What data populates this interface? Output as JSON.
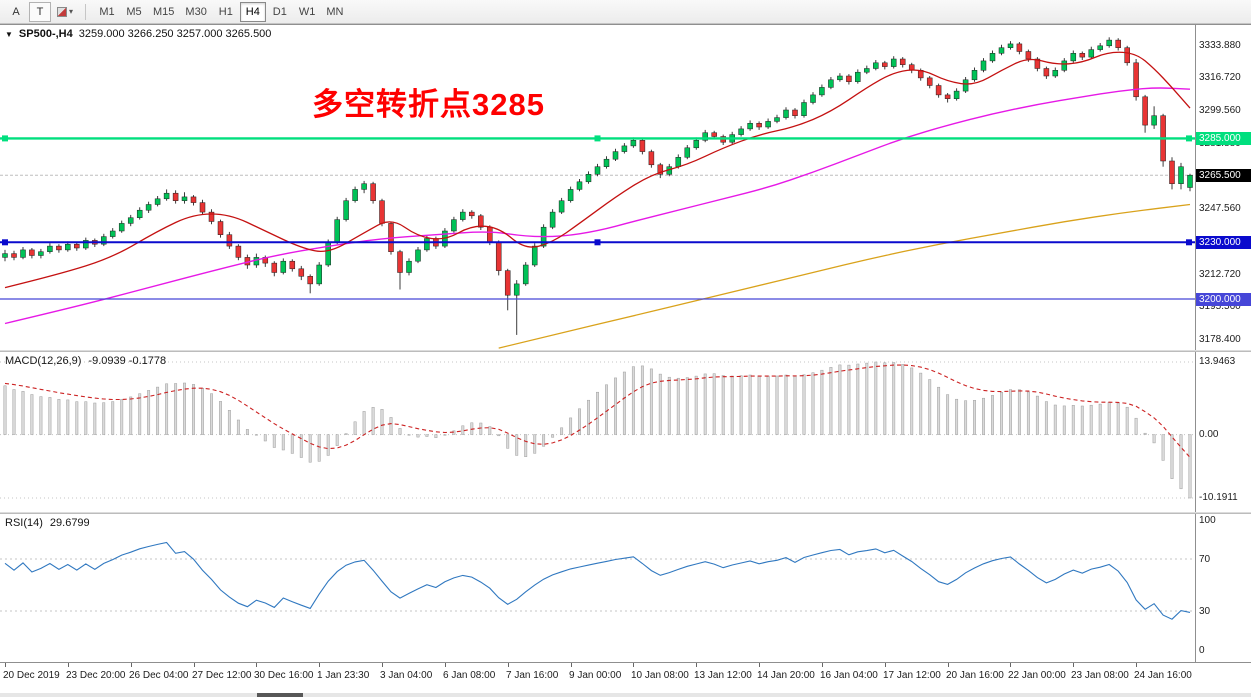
{
  "toolbar": {
    "cursor_label": "A",
    "text_label": "T",
    "dropdown_icon": "▾",
    "timeframes": [
      {
        "label": "M1",
        "active": false
      },
      {
        "label": "M5",
        "active": false
      },
      {
        "label": "M15",
        "active": false
      },
      {
        "label": "M30",
        "active": false
      },
      {
        "label": "H1",
        "active": false
      },
      {
        "label": "H4",
        "active": true
      },
      {
        "label": "D1",
        "active": false
      },
      {
        "label": "W1",
        "active": false
      },
      {
        "label": "MN",
        "active": false
      }
    ]
  },
  "chart": {
    "collapse_icon": "▼",
    "symbol_label": "SP500-,H4",
    "ohlc_text": "3259.000 3266.250 3257.000 3265.500",
    "annotation": {
      "text": "多空转折点3285",
      "color": "#fe0000"
    },
    "y_range": {
      "top": 3345,
      "bottom": 3173
    },
    "price_axis": [
      {
        "text": "3333.880",
        "price": 3333.88
      },
      {
        "text": "3316.720",
        "price": 3316.72
      },
      {
        "text": "3299.560",
        "price": 3299.56
      },
      {
        "text": "3281.880",
        "price": 3281.88
      },
      {
        "text": "3247.560",
        "price": 3247.56
      },
      {
        "text": "3212.720",
        "price": 3212.72
      },
      {
        "text": "3195.560",
        "price": 3195.56
      },
      {
        "text": "3178.400",
        "price": 3178.4
      }
    ],
    "price_tags": [
      {
        "text": "3285.000",
        "price": 3285,
        "bg": "#00df7e"
      },
      {
        "text": "3265.500",
        "price": 3265.5,
        "bg": "#000000"
      },
      {
        "text": "3230.000",
        "price": 3230,
        "bg": "#0a0acd"
      },
      {
        "text": "3200.000",
        "price": 3200,
        "bg": "#4646d8"
      }
    ],
    "hlines": [
      {
        "price": 3265.5,
        "color": "#bdbdbd",
        "width": 1,
        "handles": false,
        "behind": true
      },
      {
        "price": 3285,
        "color": "#00df7e",
        "width": 2.4,
        "handles": true,
        "behind": false
      },
      {
        "price": 3230,
        "color": "#0a0acd",
        "width": 2,
        "handles": true,
        "behind": false
      },
      {
        "price": 3200,
        "color": "#4646d8",
        "width": 1.3,
        "handles": false,
        "behind": false
      }
    ]
  },
  "chart_data": {
    "type": "candlestick",
    "symbol": "SP500-",
    "timeframe": "H4",
    "current_ohlc": {
      "open": 3259.0,
      "high": 3266.25,
      "low": 3257.0,
      "close": 3265.5
    },
    "candles": [
      [
        3222,
        3226,
        3220,
        3224
      ],
      [
        3224,
        3225.5,
        3220.5,
        3222
      ],
      [
        3222,
        3227.5,
        3221,
        3226
      ],
      [
        3226,
        3227,
        3221.5,
        3223
      ],
      [
        3223,
        3226.5,
        3221.5,
        3225
      ],
      [
        3225,
        3229.5,
        3224,
        3228
      ],
      [
        3228,
        3229,
        3224.5,
        3226
      ],
      [
        3226,
        3230.5,
        3225,
        3229
      ],
      [
        3229,
        3230,
        3225.5,
        3227
      ],
      [
        3227,
        3232.5,
        3226,
        3231
      ],
      [
        3231,
        3232,
        3227.5,
        3229
      ],
      [
        3229,
        3234.5,
        3228,
        3233
      ],
      [
        3233,
        3237.5,
        3232,
        3236
      ],
      [
        3236,
        3241.5,
        3235,
        3240
      ],
      [
        3240,
        3244.5,
        3238.5,
        3243
      ],
      [
        3243,
        3248.5,
        3242,
        3247
      ],
      [
        3247,
        3251.5,
        3245.5,
        3250
      ],
      [
        3250,
        3254.5,
        3249,
        3253
      ],
      [
        3253,
        3258,
        3252,
        3256
      ],
      [
        3256,
        3257.5,
        3250.5,
        3252
      ],
      [
        3252,
        3256.5,
        3250.5,
        3254
      ],
      [
        3254,
        3255,
        3249.5,
        3251
      ],
      [
        3251,
        3252.5,
        3244.5,
        3246
      ],
      [
        3246,
        3247.5,
        3239.5,
        3241
      ],
      [
        3241,
        3242,
        3232.5,
        3234
      ],
      [
        3234,
        3235.5,
        3226.5,
        3228
      ],
      [
        3228,
        3229,
        3220.5,
        3222
      ],
      [
        3222,
        3223.5,
        3216,
        3218
      ],
      [
        3218,
        3224,
        3216.5,
        3222
      ],
      [
        3222,
        3223,
        3217,
        3219
      ],
      [
        3219,
        3220,
        3212,
        3214
      ],
      [
        3214,
        3221.5,
        3213,
        3220
      ],
      [
        3220,
        3221,
        3214.5,
        3216
      ],
      [
        3216,
        3217.5,
        3210,
        3212
      ],
      [
        3212,
        3213,
        3203,
        3208
      ],
      [
        3208,
        3219.5,
        3207,
        3218
      ],
      [
        3218,
        3231.5,
        3217,
        3230
      ],
      [
        3230,
        3243.5,
        3229,
        3242
      ],
      [
        3242,
        3253.5,
        3241,
        3252
      ],
      [
        3252,
        3259.5,
        3251,
        3258
      ],
      [
        3258,
        3262.5,
        3256,
        3261
      ],
      [
        3261,
        3262,
        3250.5,
        3252
      ],
      [
        3252,
        3253,
        3238.5,
        3240
      ],
      [
        3240,
        3241,
        3223.5,
        3225
      ],
      [
        3225,
        3226,
        3205,
        3214
      ],
      [
        3214,
        3221.5,
        3212.5,
        3220
      ],
      [
        3220,
        3227.5,
        3219,
        3226
      ],
      [
        3226,
        3233.5,
        3225,
        3232
      ],
      [
        3232,
        3233,
        3226.5,
        3228
      ],
      [
        3228,
        3237.5,
        3227,
        3236
      ],
      [
        3236,
        3243.5,
        3235,
        3242
      ],
      [
        3242,
        3247.5,
        3241,
        3246
      ],
      [
        3246,
        3247,
        3242.5,
        3244
      ],
      [
        3244,
        3245,
        3236.5,
        3238
      ],
      [
        3238,
        3239,
        3228.5,
        3230
      ],
      [
        3230,
        3231,
        3212.5,
        3215
      ],
      [
        3215,
        3216,
        3194,
        3202
      ],
      [
        3202,
        3210,
        3181,
        3208
      ],
      [
        3208,
        3219.5,
        3207,
        3218
      ],
      [
        3218,
        3229.5,
        3217,
        3228
      ],
      [
        3228,
        3239.5,
        3227,
        3238
      ],
      [
        3238,
        3247.5,
        3237,
        3246
      ],
      [
        3246,
        3253.5,
        3245,
        3252
      ],
      [
        3252,
        3259.5,
        3251,
        3258
      ],
      [
        3258,
        3263.5,
        3257,
        3262
      ],
      [
        3262,
        3267.5,
        3261,
        3266
      ],
      [
        3266,
        3271.5,
        3265,
        3270
      ],
      [
        3270,
        3275.5,
        3269,
        3274
      ],
      [
        3274,
        3279.5,
        3273,
        3278
      ],
      [
        3278,
        3282.5,
        3277,
        3281
      ],
      [
        3281,
        3285.5,
        3280,
        3284
      ],
      [
        3284,
        3285,
        3276.5,
        3278
      ],
      [
        3278,
        3279,
        3269.5,
        3271
      ],
      [
        3271,
        3272,
        3264,
        3266
      ],
      [
        3266,
        3271.5,
        3265,
        3270
      ],
      [
        3270,
        3276.5,
        3269,
        3275
      ],
      [
        3275,
        3281.5,
        3274,
        3280
      ],
      [
        3280,
        3285.5,
        3279,
        3284
      ],
      [
        3284,
        3289.5,
        3283,
        3288
      ],
      [
        3288,
        3289,
        3284.5,
        3286
      ],
      [
        3286,
        3287,
        3281.5,
        3283
      ],
      [
        3283,
        3288.5,
        3282,
        3287
      ],
      [
        3287,
        3291.5,
        3286,
        3290
      ],
      [
        3290,
        3294.5,
        3289,
        3293
      ],
      [
        3293,
        3294,
        3289.5,
        3291
      ],
      [
        3291,
        3295.5,
        3290,
        3294
      ],
      [
        3294,
        3297.5,
        3293,
        3296
      ],
      [
        3296,
        3301.5,
        3295,
        3300
      ],
      [
        3300,
        3301,
        3295.5,
        3297
      ],
      [
        3297,
        3305.5,
        3296,
        3304
      ],
      [
        3304,
        3309.5,
        3303,
        3308
      ],
      [
        3308,
        3313.5,
        3307,
        3312
      ],
      [
        3312,
        3317.5,
        3311,
        3316
      ],
      [
        3316,
        3319.5,
        3315,
        3318
      ],
      [
        3318,
        3319,
        3313.5,
        3315
      ],
      [
        3315,
        3321.5,
        3314,
        3320
      ],
      [
        3320,
        3323.5,
        3319,
        3322
      ],
      [
        3322,
        3326.5,
        3321,
        3325
      ],
      [
        3325,
        3326,
        3321.5,
        3323
      ],
      [
        3323,
        3328.5,
        3322,
        3327
      ],
      [
        3327,
        3328,
        3322.5,
        3324
      ],
      [
        3324,
        3325,
        3319.5,
        3321
      ],
      [
        3321,
        3322,
        3315.5,
        3317
      ],
      [
        3317,
        3318,
        3311.5,
        3313
      ],
      [
        3313,
        3314,
        3306.5,
        3308
      ],
      [
        3308,
        3309,
        3304,
        3306
      ],
      [
        3306,
        3311.5,
        3305,
        3310
      ],
      [
        3310,
        3317.5,
        3309,
        3316
      ],
      [
        3316,
        3322.5,
        3315,
        3321
      ],
      [
        3321,
        3327.5,
        3320,
        3326
      ],
      [
        3326,
        3331.5,
        3325,
        3330
      ],
      [
        3330,
        3334.5,
        3329,
        3333
      ],
      [
        3333,
        3336.5,
        3332,
        3335
      ],
      [
        3335,
        3336,
        3329.5,
        3331
      ],
      [
        3331,
        3332,
        3325.5,
        3327
      ],
      [
        3327,
        3328,
        3320.5,
        3322
      ],
      [
        3322,
        3323,
        3316.5,
        3318
      ],
      [
        3318,
        3322.5,
        3317,
        3321
      ],
      [
        3321,
        3327.5,
        3320,
        3326
      ],
      [
        3326,
        3331.5,
        3325,
        3330
      ],
      [
        3330,
        3331,
        3326.5,
        3328
      ],
      [
        3328,
        3333.5,
        3327,
        3332
      ],
      [
        3332,
        3335.5,
        3331,
        3334
      ],
      [
        3334,
        3338.5,
        3333,
        3337
      ],
      [
        3337,
        3338,
        3331.5,
        3333
      ],
      [
        3333,
        3334,
        3323.5,
        3325
      ],
      [
        3325,
        3327,
        3305,
        3307
      ],
      [
        3307,
        3308,
        3288,
        3292
      ],
      [
        3292,
        3302,
        3290,
        3297
      ],
      [
        3297,
        3298,
        3270,
        3273
      ],
      [
        3273,
        3275,
        3258,
        3261
      ],
      [
        3261,
        3272,
        3258,
        3270
      ],
      [
        3259,
        3266.25,
        3257,
        3265.5
      ]
    ],
    "time_labels": [
      {
        "text": "20 Dec 2019",
        "bar": 0
      },
      {
        "text": "23 Dec 20:00",
        "bar": 7
      },
      {
        "text": "26 Dec 04:00",
        "bar": 14
      },
      {
        "text": "27 Dec 12:00",
        "bar": 21
      },
      {
        "text": "30 Dec 16:00",
        "bar": 28
      },
      {
        "text": "1 Jan 23:30",
        "bar": 35
      },
      {
        "text": "3 Jan 04:00",
        "bar": 42
      },
      {
        "text": "6 Jan 08:00",
        "bar": 49
      },
      {
        "text": "7 Jan 16:00",
        "bar": 56
      },
      {
        "text": "9 Jan 00:00",
        "bar": 63
      },
      {
        "text": "10 Jan 08:00",
        "bar": 70
      },
      {
        "text": "13 Jan 12:00",
        "bar": 77
      },
      {
        "text": "14 Jan 20:00",
        "bar": 84
      },
      {
        "text": "16 Jan 04:00",
        "bar": 91
      },
      {
        "text": "17 Jan 12:00",
        "bar": 98
      },
      {
        "text": "20 Jan 16:00",
        "bar": 105
      },
      {
        "text": "22 Jan 00:00",
        "bar": 112
      },
      {
        "text": "23 Jan 08:00",
        "bar": 119
      },
      {
        "text": "24 Jan 16:00",
        "bar": 126
      }
    ],
    "ma_red": [
      [
        0,
        3206
      ],
      [
        6,
        3213
      ],
      [
        12,
        3222
      ],
      [
        17,
        3236
      ],
      [
        21,
        3245
      ],
      [
        25,
        3245
      ],
      [
        29,
        3236
      ],
      [
        33,
        3227
      ],
      [
        36,
        3224
      ],
      [
        40,
        3235
      ],
      [
        43,
        3243
      ],
      [
        46,
        3233
      ],
      [
        49,
        3231
      ],
      [
        52,
        3239
      ],
      [
        55,
        3238
      ],
      [
        58,
        3226
      ],
      [
        61,
        3230
      ],
      [
        64,
        3240
      ],
      [
        68,
        3254
      ],
      [
        72,
        3266
      ],
      [
        76,
        3271
      ],
      [
        80,
        3280
      ],
      [
        84,
        3287
      ],
      [
        88,
        3291
      ],
      [
        92,
        3299
      ],
      [
        96,
        3312
      ],
      [
        99,
        3320
      ],
      [
        102,
        3322
      ],
      [
        105,
        3315
      ],
      [
        108,
        3313
      ],
      [
        111,
        3321
      ],
      [
        114,
        3328
      ],
      [
        117,
        3324
      ],
      [
        120,
        3325
      ],
      [
        123,
        3331
      ],
      [
        126,
        3330
      ],
      [
        128,
        3322
      ],
      [
        130,
        3312
      ],
      [
        132,
        3301
      ]
    ],
    "ma_magenta": [
      [
        0,
        3187
      ],
      [
        8,
        3196
      ],
      [
        16,
        3206
      ],
      [
        24,
        3216
      ],
      [
        30,
        3223
      ],
      [
        36,
        3228
      ],
      [
        42,
        3232
      ],
      [
        48,
        3234
      ],
      [
        54,
        3236
      ],
      [
        58,
        3233
      ],
      [
        62,
        3233
      ],
      [
        66,
        3236
      ],
      [
        70,
        3241
      ],
      [
        75,
        3247
      ],
      [
        80,
        3253
      ],
      [
        85,
        3259
      ],
      [
        90,
        3267
      ],
      [
        95,
        3276
      ],
      [
        100,
        3285
      ],
      [
        105,
        3292
      ],
      [
        110,
        3298
      ],
      [
        115,
        3303
      ],
      [
        120,
        3307
      ],
      [
        124,
        3310
      ],
      [
        128,
        3312
      ],
      [
        132,
        3311
      ]
    ],
    "ma_orange": [
      [
        55,
        3174
      ],
      [
        62,
        3182
      ],
      [
        69,
        3190
      ],
      [
        76,
        3198
      ],
      [
        83,
        3206
      ],
      [
        90,
        3214
      ],
      [
        97,
        3222
      ],
      [
        104,
        3229
      ],
      [
        111,
        3235
      ],
      [
        118,
        3241
      ],
      [
        125,
        3246
      ],
      [
        132,
        3250
      ]
    ],
    "macd": {
      "label": "MACD(12,26,9)",
      "values_text": "-9.0939 -0.1778",
      "params": [
        12,
        26,
        9
      ],
      "axis_labels": [
        "13.9463",
        "0.00",
        "-10.1911"
      ]
    },
    "rsi": {
      "label": "RSI(14)",
      "value_text": "29.6799",
      "period": 14,
      "levels": [
        70,
        30
      ],
      "axis_labels": [
        "100",
        "70",
        "30",
        "0"
      ]
    }
  },
  "colors": {
    "bull": "#00c257",
    "bear": "#e83434",
    "outline": "#1f1f1f",
    "wick": "#3c3c3c",
    "ma_red": "#c41111",
    "ma_magenta": "#e619e6",
    "ma_orange": "#d9a21b",
    "macd_hist_fill": "#dadada",
    "macd_hist_stroke": "#9e9e9e",
    "macd_signal": "#cc2222",
    "rsi_line": "#3078c0",
    "grid_dotted": "#c4c4c4"
  }
}
